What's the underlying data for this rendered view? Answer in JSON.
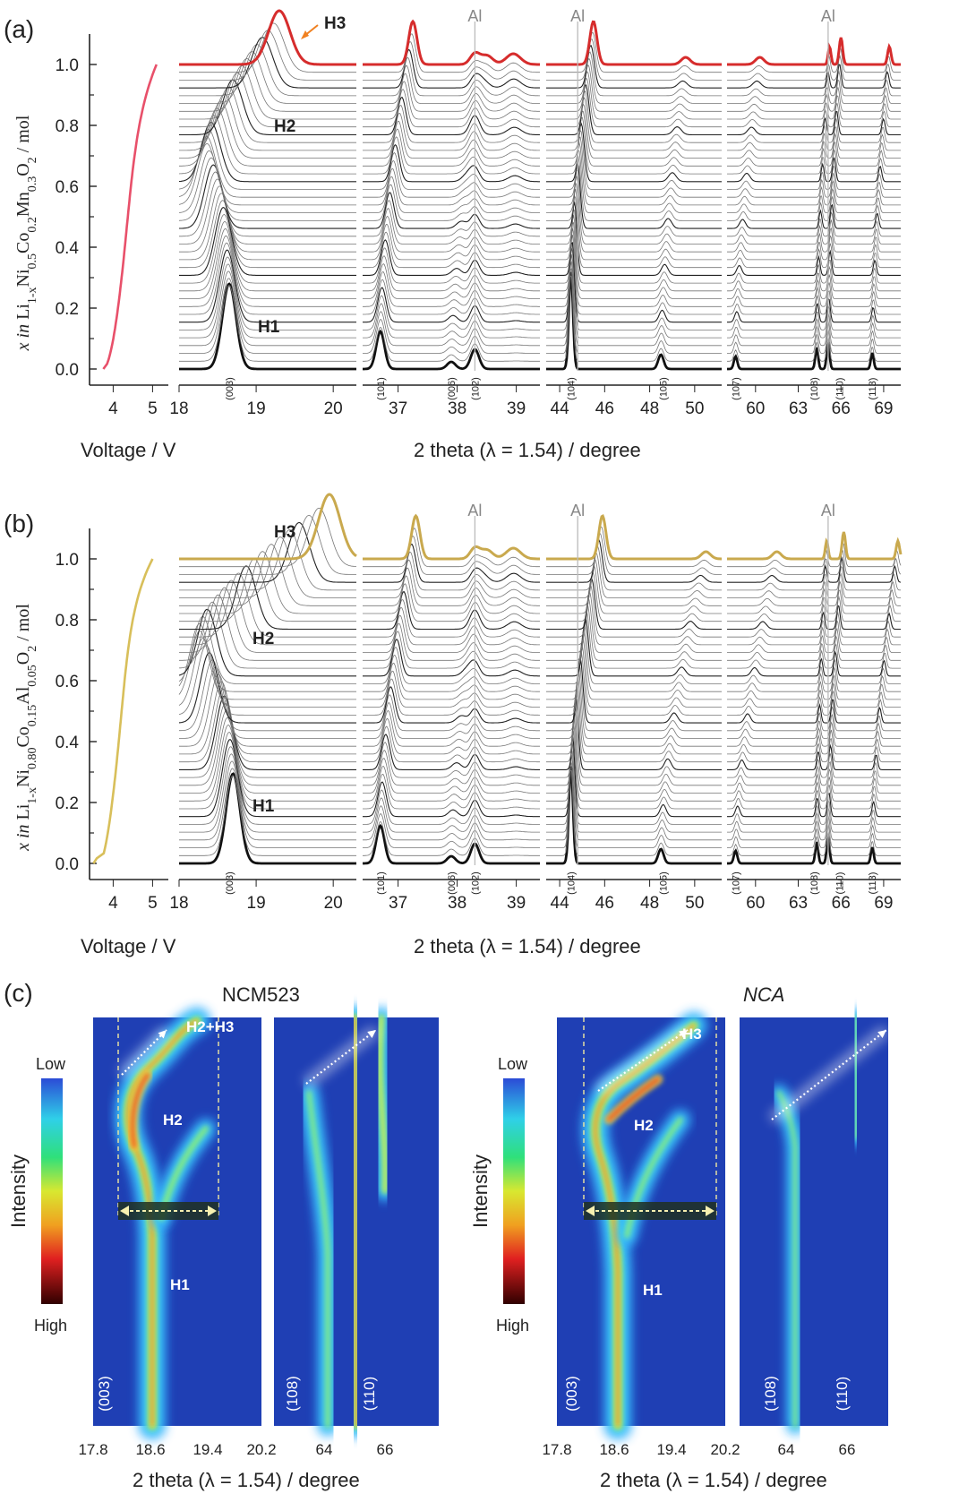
{
  "figure": {
    "panel_a": {
      "label": "(a)",
      "y_axis_label_html": "x in Li1-xNi0.5Co0.2Mn0.3O2 / mol",
      "y_ticks": [
        "0.0",
        "0.2",
        "0.4",
        "0.6",
        "0.8",
        "1.0"
      ],
      "voltage_ticks": [
        "4",
        "5"
      ],
      "voltage_label": "Voltage / V",
      "two_theta_label": "2 theta (λ = 1.54) / degree",
      "segments": [
        {
          "ticks": [
            "18",
            "19",
            "20"
          ],
          "range": [
            18,
            20.3
          ]
        },
        {
          "ticks": [
            "37",
            "38",
            "39"
          ],
          "range": [
            36.4,
            39.4
          ]
        },
        {
          "ticks": [
            "44",
            "46",
            "48",
            "50"
          ],
          "range": [
            43.4,
            51.2
          ]
        },
        {
          "ticks": [
            "60",
            "63",
            "66",
            "69"
          ],
          "range": [
            58.0,
            70.2
          ]
        }
      ],
      "hkl": [
        "(003)",
        "(101)",
        "(006)",
        "(102)",
        "(104)",
        "(105)",
        "(107)",
        "(108)",
        "(110)",
        "(113)"
      ],
      "phase_labels": [
        "H1",
        "H2",
        "H3"
      ],
      "al_label": "Al",
      "top_color": "#d62c2c",
      "voltage_color": "#e8506a"
    },
    "panel_b": {
      "label": "(b)",
      "y_axis_label_html": "x in Li1-xNi0.80Co0.15Al0.05O2 / mol",
      "y_ticks": [
        "0.0",
        "0.2",
        "0.4",
        "0.6",
        "0.8",
        "1.0"
      ],
      "voltage_ticks": [
        "4",
        "5"
      ],
      "voltage_label": "Voltage / V",
      "two_theta_label": "2 theta (λ = 1.54) / degree",
      "segments": [
        {
          "ticks": [
            "18",
            "19",
            "20"
          ],
          "range": [
            18,
            20.3
          ]
        },
        {
          "ticks": [
            "37",
            "38",
            "39"
          ],
          "range": [
            36.4,
            39.4
          ]
        },
        {
          "ticks": [
            "44",
            "46",
            "48",
            "50"
          ],
          "range": [
            43.4,
            51.2
          ]
        },
        {
          "ticks": [
            "60",
            "63",
            "66",
            "69"
          ],
          "range": [
            58.0,
            70.2
          ]
        }
      ],
      "hkl": [
        "(003)",
        "(101)",
        "(006)",
        "(102)",
        "(104)",
        "(105)",
        "(107)",
        "(108)",
        "(110)",
        "(113)"
      ],
      "phase_labels": [
        "H1",
        "H2",
        "H3"
      ],
      "al_label": "Al",
      "top_color": "#c9a94e",
      "voltage_color": "#d8bf5a"
    },
    "panel_c": {
      "label": "(c)",
      "intensity_label": "Intensity",
      "low_label": "Low",
      "high_label": "High",
      "ncm_title": "NCM523",
      "nca_title": "NCA",
      "x_ticks_left": [
        "17.8",
        "18.6",
        "19.4",
        "20.2"
      ],
      "x_ticks_right": [
        "64",
        "66"
      ],
      "x_label": "2 theta (λ = 1.54) / degree",
      "ncm_labels": [
        "H2+H3",
        "H2",
        "H1"
      ],
      "nca_labels": [
        "H3",
        "H2",
        "H1"
      ],
      "map_hkl": [
        "(003)",
        "(108)",
        "(110)"
      ]
    }
  },
  "chart_data": [
    {
      "type": "line",
      "panel": "a",
      "series_count": 40,
      "x_segments": [
        [
          18,
          20.3
        ],
        [
          36.4,
          39.4
        ],
        [
          43.4,
          51.2
        ],
        [
          58,
          70.2
        ]
      ],
      "ylim": [
        0,
        1.1
      ],
      "peaks_start": {
        "(003)": 18.65,
        "(101)": 36.7,
        "(006)": 37.9,
        "(102)": 38.3,
        "(104)": 44.5,
        "(105)": 48.5,
        "(107)": 58.6,
        "(108)": 64.3,
        "(110)": 65.1,
        "(113)": 68.2
      },
      "peaks_end": {
        "(003)": 19.3,
        "(101)": 37.25,
        "(102)": 38.3,
        "(104)": 45.5,
        "(105)": 49.6,
        "(107)": 60.3,
        "(108)": 65.2,
        "(110)": 66.0,
        "(113)": 69.4
      }
    },
    {
      "type": "line",
      "panel": "b",
      "series_count": 40,
      "x_segments": [
        [
          18,
          20.3
        ],
        [
          36.4,
          39.4
        ],
        [
          43.4,
          51.2
        ],
        [
          58,
          70.2
        ]
      ],
      "ylim": [
        0,
        1.1
      ],
      "peaks_start": {
        "(003)": 18.7,
        "(101)": 36.7,
        "(006)": 37.9,
        "(102)": 38.3,
        "(104)": 44.5,
        "(105)": 48.5,
        "(107)": 58.6,
        "(108)": 64.3,
        "(110)": 65.1,
        "(113)": 68.2
      },
      "peaks_end": {
        "(003)": 19.95,
        "(101)": 37.3,
        "(102)": 38.3,
        "(104)": 45.9,
        "(105)": 50.5,
        "(107)": 61.5,
        "(108)": 65.0,
        "(110)": 66.2,
        "(113)": 70.0
      }
    },
    {
      "type": "heatmap",
      "panel": "c",
      "maps": [
        "NCM523 (003)",
        "NCM523 (108)/(110)",
        "NCA (003)",
        "NCA (108)/(110)"
      ],
      "x_ticks_left": [
        17.8,
        18.6,
        19.4,
        20.2
      ],
      "x_ticks_right": [
        64,
        66
      ]
    }
  ]
}
